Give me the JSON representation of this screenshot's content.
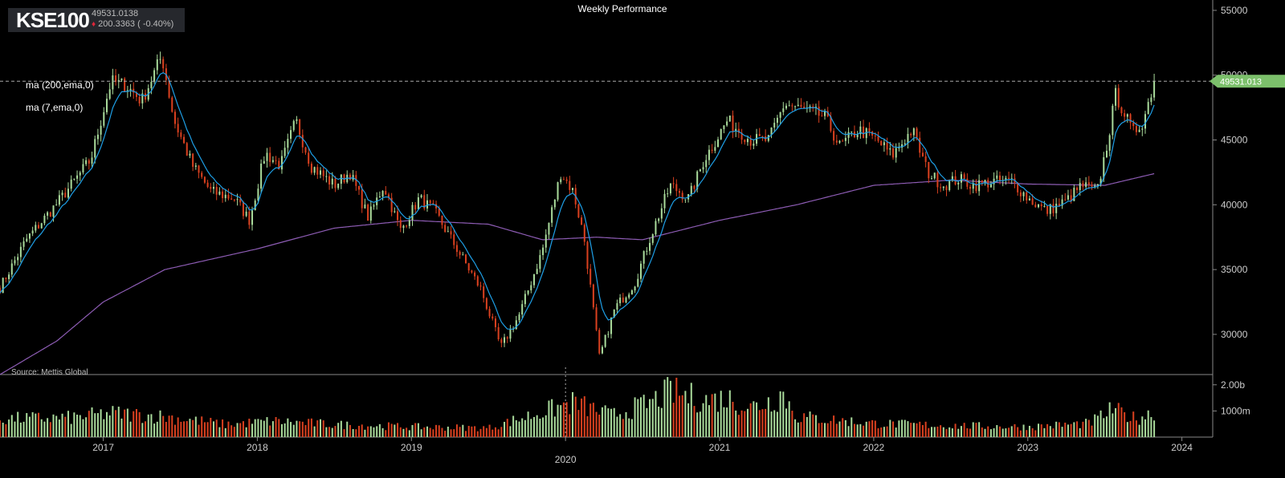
{
  "header": {
    "symbol": "KSE100",
    "last_price": "49531.0138",
    "change_text": "200.3363 ( -0.40%)",
    "title": "Weekly Performance",
    "source": "Source: Mettis Global"
  },
  "indicators": {
    "ma200_label": "ma (200,ema,0)",
    "ma7_label": "ma (7,ema,0)"
  },
  "colors": {
    "up": "#a8d99a",
    "down": "#d8401f",
    "ma7": "#1e9fe6",
    "ma200": "#8d5cb4",
    "last_price_tag": "#7cc06b",
    "axis_text": "#cccccc"
  },
  "chart_data": {
    "type": "candlestick",
    "interval": "weekly",
    "last_price_label": "49531.013",
    "price_axis": {
      "min": 26900,
      "max": 55800,
      "ticks": [
        30000,
        35000,
        40000,
        45000,
        50000,
        55000
      ],
      "tick_labels": [
        "30000",
        "35000",
        "40000",
        "45000",
        "50000",
        "55000"
      ]
    },
    "volume_axis": {
      "ticks": [
        1000000000,
        2000000000
      ],
      "tick_labels": [
        "1000m",
        "2.00b"
      ]
    },
    "x_axis": {
      "start": 2016.33,
      "end": 2024.2,
      "ticks": [
        2017,
        2018,
        2019,
        2020,
        2021,
        2022,
        2023,
        2024
      ],
      "tick_labels": [
        "2017",
        "2018",
        "2019",
        "2020",
        "2021",
        "2022",
        "2023",
        "2024"
      ],
      "emphasized": "2020"
    },
    "price_anchors": [
      [
        2016.33,
        33600
      ],
      [
        2016.5,
        37300
      ],
      [
        2016.7,
        40100
      ],
      [
        2016.92,
        43500
      ],
      [
        2017.05,
        49500
      ],
      [
        2017.15,
        49200
      ],
      [
        2017.25,
        48000
      ],
      [
        2017.38,
        51500
      ],
      [
        2017.46,
        46500
      ],
      [
        2017.58,
        43000
      ],
      [
        2017.7,
        41000
      ],
      [
        2017.85,
        40500
      ],
      [
        2017.95,
        38800
      ],
      [
        2018.05,
        44000
      ],
      [
        2018.15,
        43000
      ],
      [
        2018.25,
        46500
      ],
      [
        2018.35,
        43000
      ],
      [
        2018.5,
        41500
      ],
      [
        2018.6,
        42500
      ],
      [
        2018.72,
        39000
      ],
      [
        2018.82,
        41500
      ],
      [
        2018.93,
        38000
      ],
      [
        2019.05,
        40500
      ],
      [
        2019.15,
        39500
      ],
      [
        2019.3,
        36500
      ],
      [
        2019.45,
        33500
      ],
      [
        2019.58,
        29000
      ],
      [
        2019.7,
        31500
      ],
      [
        2019.85,
        36500
      ],
      [
        2019.97,
        42500
      ],
      [
        2020.05,
        41000
      ],
      [
        2020.12,
        37500
      ],
      [
        2020.22,
        28200
      ],
      [
        2020.32,
        32000
      ],
      [
        2020.45,
        34000
      ],
      [
        2020.55,
        37500
      ],
      [
        2020.68,
        41500
      ],
      [
        2020.8,
        40500
      ],
      [
        2020.9,
        43500
      ],
      [
        2021.05,
        46500
      ],
      [
        2021.2,
        45000
      ],
      [
        2021.32,
        45000
      ],
      [
        2021.42,
        47800
      ],
      [
        2021.55,
        47300
      ],
      [
        2021.68,
        46800
      ],
      [
        2021.78,
        44500
      ],
      [
        2021.9,
        45800
      ],
      [
        2022.02,
        45000
      ],
      [
        2022.12,
        43800
      ],
      [
        2022.25,
        45800
      ],
      [
        2022.35,
        42500
      ],
      [
        2022.45,
        41500
      ],
      [
        2022.55,
        42000
      ],
      [
        2022.65,
        41500
      ],
      [
        2022.78,
        41800
      ],
      [
        2022.9,
        41800
      ],
      [
        2023.0,
        40500
      ],
      [
        2023.12,
        39500
      ],
      [
        2023.25,
        40300
      ],
      [
        2023.35,
        41500
      ],
      [
        2023.45,
        41000
      ],
      [
        2023.52,
        45000
      ],
      [
        2023.57,
        48500
      ],
      [
        2023.63,
        47000
      ],
      [
        2023.68,
        45500
      ],
      [
        2023.75,
        46500
      ],
      [
        2023.82,
        49531
      ]
    ],
    "ma200_anchors": [
      [
        2016.33,
        26900
      ],
      [
        2016.7,
        29500
      ],
      [
        2017.0,
        32500
      ],
      [
        2017.4,
        35000
      ],
      [
        2018.0,
        36600
      ],
      [
        2018.5,
        38200
      ],
      [
        2019.0,
        38800
      ],
      [
        2019.5,
        38500
      ],
      [
        2019.85,
        37300
      ],
      [
        2020.2,
        37500
      ],
      [
        2020.5,
        37300
      ],
      [
        2021.0,
        38800
      ],
      [
        2021.5,
        40000
      ],
      [
        2022.0,
        41500
      ],
      [
        2022.5,
        41900
      ],
      [
        2023.0,
        41600
      ],
      [
        2023.5,
        41500
      ],
      [
        2023.82,
        42400
      ]
    ],
    "volume_anchors": [
      [
        2016.33,
        0.8
      ],
      [
        2016.8,
        0.85
      ],
      [
        2017.05,
        1.05
      ],
      [
        2017.4,
        0.9
      ],
      [
        2017.8,
        0.55
      ],
      [
        2018.1,
        0.7
      ],
      [
        2018.5,
        0.55
      ],
      [
        2019.0,
        0.45
      ],
      [
        2019.5,
        0.4
      ],
      [
        2019.85,
        1.1
      ],
      [
        2020.05,
        1.5
      ],
      [
        2020.3,
        0.95
      ],
      [
        2020.55,
        1.5
      ],
      [
        2020.68,
        2.0
      ],
      [
        2020.9,
        1.6
      ],
      [
        2021.05,
        1.7
      ],
      [
        2021.2,
        1.3
      ],
      [
        2021.38,
        1.7
      ],
      [
        2021.4,
        2.0
      ],
      [
        2021.5,
        0.9
      ],
      [
        2022.0,
        0.6
      ],
      [
        2022.5,
        0.5
      ],
      [
        2023.0,
        0.45
      ],
      [
        2023.4,
        0.6
      ],
      [
        2023.55,
        1.2
      ],
      [
        2023.7,
        0.8
      ],
      [
        2023.82,
        1.1
      ]
    ]
  }
}
